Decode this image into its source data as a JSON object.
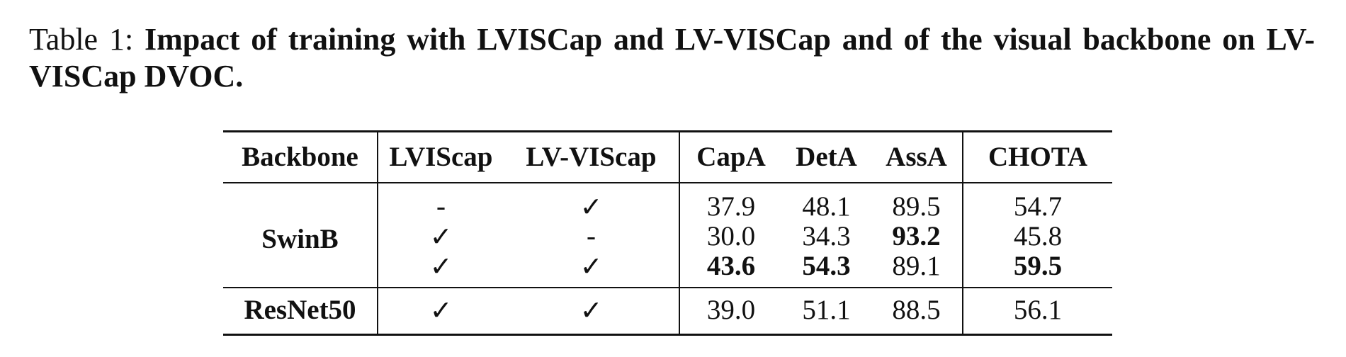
{
  "caption": {
    "label": "Table 1:",
    "text": "Impact of training with LVISCap and LV-VISCap and of the visual backbone on LV-VISCap DVOC."
  },
  "table": {
    "headers": {
      "backbone": "Backbone",
      "lviscap": "LVIScap",
      "lvviscap": "LV-VIScap",
      "capa": "CapA",
      "deta": "DetA",
      "assa": "AssA",
      "chota": "CHOTA"
    },
    "groups": [
      {
        "backbone": "SwinB",
        "rows": [
          {
            "lviscap": "-",
            "lvviscap": "✓",
            "capa": "37.9",
            "deta": "48.1",
            "assa": "89.5",
            "chota": "54.7"
          },
          {
            "lviscap": "✓",
            "lvviscap": "-",
            "capa": "30.0",
            "deta": "34.3",
            "assa": "93.2",
            "chota": "45.8"
          },
          {
            "lviscap": "✓",
            "lvviscap": "✓",
            "capa": "43.6",
            "deta": "54.3",
            "assa": "89.1",
            "chota": "59.5"
          }
        ]
      },
      {
        "backbone": "ResNet50",
        "rows": [
          {
            "lviscap": "✓",
            "lvviscap": "✓",
            "capa": "39.0",
            "deta": "51.1",
            "assa": "88.5",
            "chota": "56.1"
          }
        ]
      }
    ]
  }
}
